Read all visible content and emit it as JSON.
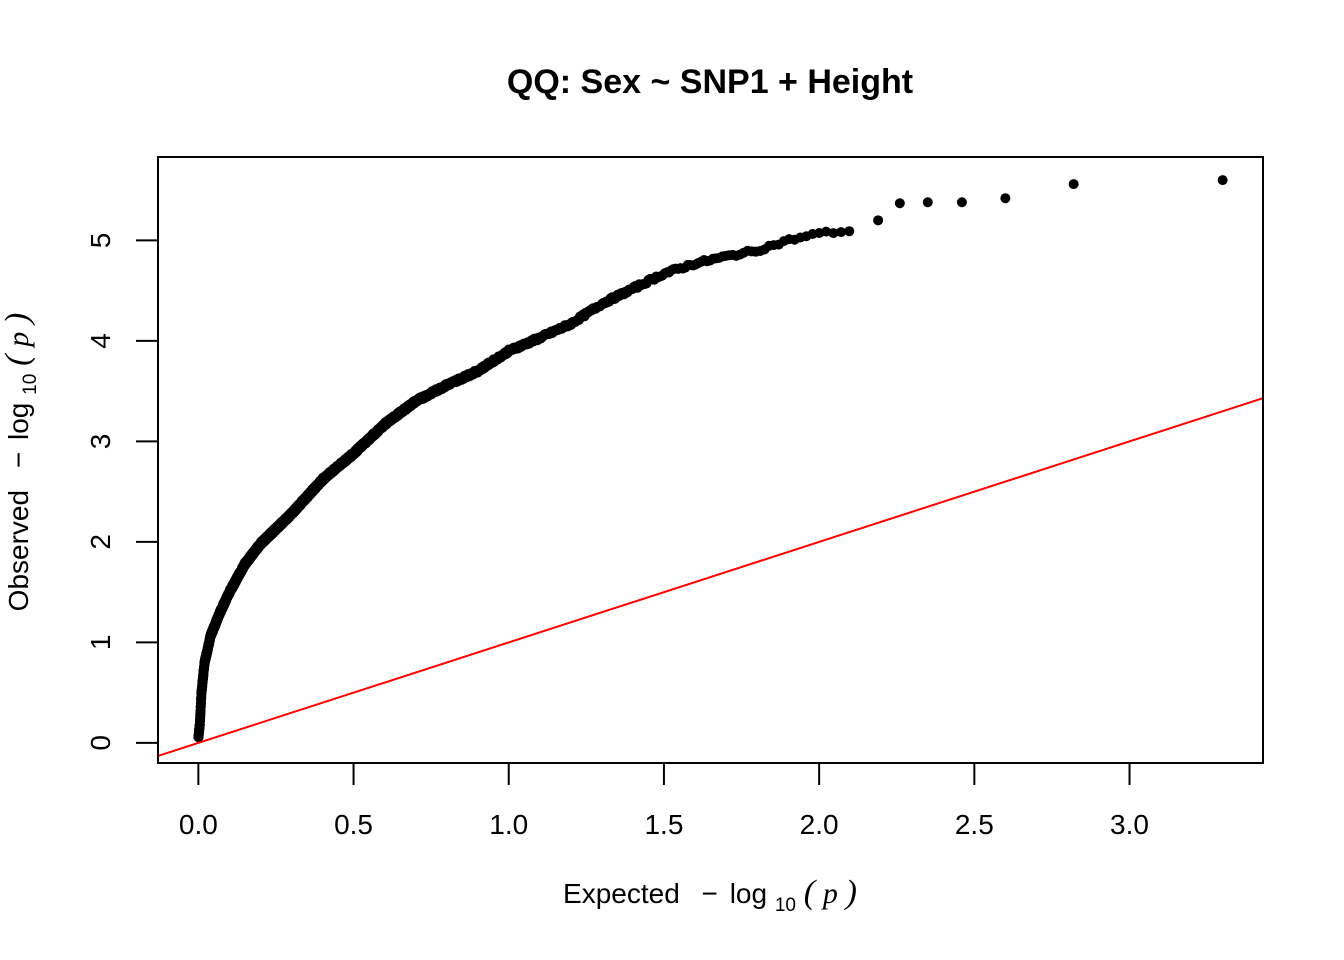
{
  "chart_data": {
    "type": "scatter",
    "title": "QQ: Sex ~ SNP1 + Height",
    "xlabel": {
      "prefix": "Expected",
      "minus": "−",
      "log": "log",
      "sub": "10",
      "open": "(",
      "var": "p",
      "close": ")"
    },
    "ylabel": {
      "prefix": "Observed",
      "minus": "−",
      "log": "log",
      "sub": "10",
      "open": "(",
      "var": "p",
      "close": ")"
    },
    "xlim": [
      -0.13,
      3.43
    ],
    "ylim": [
      -0.2,
      5.83
    ],
    "xticks": [
      0.0,
      0.5,
      1.0,
      1.5,
      2.0,
      2.5,
      3.0
    ],
    "xtick_labels": [
      "0.0",
      "0.5",
      "1.0",
      "1.5",
      "2.0",
      "2.5",
      "3.0"
    ],
    "yticks": [
      0,
      1,
      2,
      3,
      4,
      5
    ],
    "ytick_labels": [
      "0",
      "1",
      "2",
      "3",
      "4",
      "5"
    ],
    "reference_line": {
      "intercept": 0,
      "slope": 1,
      "color": "#ff0000"
    },
    "point_color": "#000000",
    "n_points": 2000,
    "curve_knots": [
      [
        0.0,
        0.05
      ],
      [
        0.005,
        0.2
      ],
      [
        0.01,
        0.5
      ],
      [
        0.02,
        0.8
      ],
      [
        0.04,
        1.07
      ],
      [
        0.07,
        1.3
      ],
      [
        0.1,
        1.5
      ],
      [
        0.15,
        1.78
      ],
      [
        0.2,
        1.98
      ],
      [
        0.3,
        2.28
      ],
      [
        0.4,
        2.62
      ],
      [
        0.5,
        2.88
      ],
      [
        0.6,
        3.17
      ],
      [
        0.7,
        3.4
      ],
      [
        0.8,
        3.56
      ],
      [
        0.9,
        3.7
      ],
      [
        1.0,
        3.9
      ],
      [
        1.1,
        4.03
      ],
      [
        1.2,
        4.17
      ],
      [
        1.3,
        4.37
      ],
      [
        1.4,
        4.52
      ],
      [
        1.5,
        4.67
      ],
      [
        1.6,
        4.77
      ],
      [
        1.7,
        4.84
      ],
      [
        1.8,
        4.9
      ],
      [
        1.9,
        5.0
      ],
      [
        2.0,
        5.07
      ],
      [
        2.12,
        5.1
      ]
    ],
    "top_points": [
      [
        2.19,
        5.2
      ],
      [
        2.26,
        5.37
      ],
      [
        2.35,
        5.38
      ],
      [
        2.46,
        5.38
      ],
      [
        2.6,
        5.42
      ],
      [
        2.82,
        5.56
      ],
      [
        3.3,
        5.6
      ]
    ]
  }
}
